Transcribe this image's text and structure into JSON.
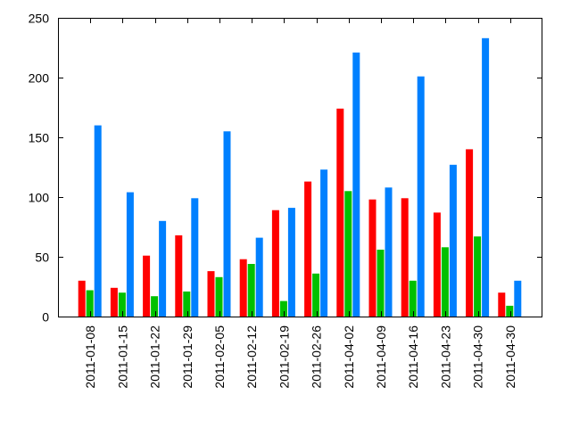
{
  "chart_data": {
    "type": "bar",
    "categories": [
      "2011-01-08",
      "2011-01-15",
      "2011-01-22",
      "2011-01-29",
      "2011-02-05",
      "2011-02-12",
      "2011-02-19",
      "2011-02-26",
      "2011-04-02",
      "2011-04-09",
      "2011-04-16",
      "2011-04-23",
      "2011-04-30",
      "2011-04-30"
    ],
    "series": [
      {
        "color": "#ff0000",
        "values": [
          30,
          24,
          51,
          68,
          38,
          48,
          89,
          113,
          174,
          98,
          99,
          87,
          140,
          20
        ]
      },
      {
        "color": "#00c000",
        "values": [
          22,
          20,
          17,
          21,
          33,
          44,
          13,
          36,
          105,
          56,
          30,
          58,
          67,
          9
        ]
      },
      {
        "color": "#0080ff",
        "values": [
          160,
          104,
          80,
          99,
          155,
          66,
          91,
          123,
          221,
          108,
          201,
          127,
          233,
          30
        ]
      }
    ],
    "xlabel": "",
    "ylabel": "",
    "ylim": [
      0,
      250
    ],
    "yticks": [
      0,
      50,
      100,
      150,
      200,
      250
    ],
    "grid": false,
    "legend": "none"
  }
}
